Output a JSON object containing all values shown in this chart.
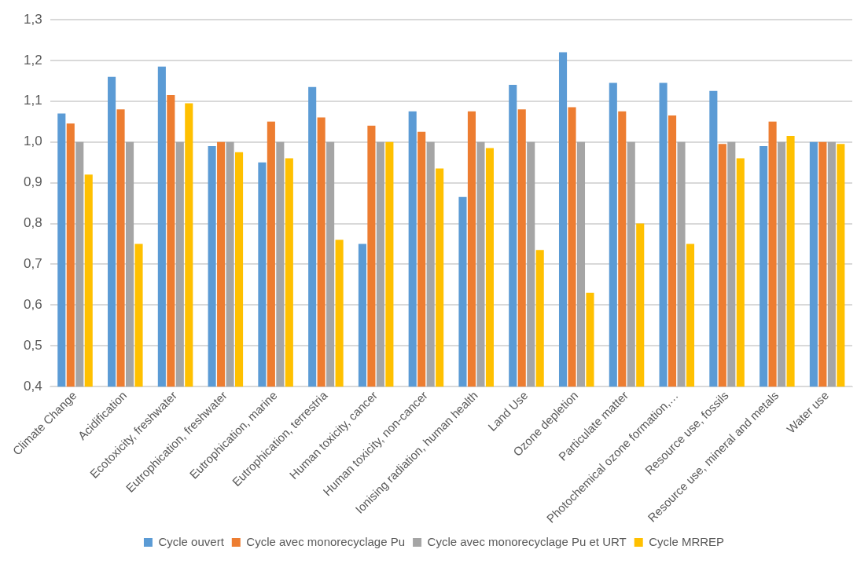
{
  "chart_data": {
    "type": "bar",
    "categories": [
      "Climate Change",
      "Acidification",
      "Ecotoxicity, freshwater",
      "Eutrophication, freshwater",
      "Eutrophication, marine",
      "Eutrophication, terrestria",
      "Human toxicity, cancer",
      "Human toxicity, non-cancer",
      "Ionising radiation, human health",
      "Land Use",
      "Ozone depletion",
      "Particulate matter",
      "Photochemical ozone formation,…",
      "Resource use, fossils",
      "Resource use, mineral and metals",
      "Water use"
    ],
    "series": [
      {
        "name": "Cycle ouvert",
        "color": "#5b9bd5",
        "values": [
          1.07,
          1.16,
          1.185,
          0.99,
          0.95,
          1.135,
          0.75,
          1.075,
          0.865,
          1.14,
          1.22,
          1.145,
          1.145,
          1.125,
          0.99,
          1.0
        ]
      },
      {
        "name": "Cycle avec monorecyclage Pu",
        "color": "#ed7d31",
        "values": [
          1.045,
          1.08,
          1.115,
          1.0,
          1.05,
          1.06,
          1.04,
          1.025,
          1.075,
          1.08,
          1.085,
          1.075,
          1.065,
          0.995,
          1.05,
          1.0
        ]
      },
      {
        "name": "Cycle avec monorecyclage Pu et URT",
        "color": "#a5a5a5",
        "values": [
          1.0,
          1.0,
          1.0,
          1.0,
          1.0,
          1.0,
          1.0,
          1.0,
          1.0,
          1.0,
          1.0,
          1.0,
          1.0,
          1.0,
          1.0,
          1.0
        ]
      },
      {
        "name": "Cycle MRREP",
        "color": "#ffc000",
        "values": [
          0.92,
          0.75,
          1.095,
          0.975,
          0.96,
          0.76,
          1.0,
          0.935,
          0.985,
          0.735,
          0.63,
          0.8,
          0.75,
          0.96,
          1.015,
          0.995
        ]
      }
    ],
    "ylim": [
      0.4,
      1.3
    ],
    "yticks": [
      {
        "value": 0.4,
        "label": "0,4"
      },
      {
        "value": 0.5,
        "label": "0,5"
      },
      {
        "value": 0.6,
        "label": "0,6"
      },
      {
        "value": 0.7,
        "label": "0,7"
      },
      {
        "value": 0.8,
        "label": "0,8"
      },
      {
        "value": 0.9,
        "label": "0,9"
      },
      {
        "value": 1.0,
        "label": "1,0"
      },
      {
        "value": 1.1,
        "label": "1,1"
      },
      {
        "value": 1.2,
        "label": "1,2"
      },
      {
        "value": 1.3,
        "label": "1,3"
      }
    ],
    "grid": "y",
    "legend": "bottom"
  }
}
